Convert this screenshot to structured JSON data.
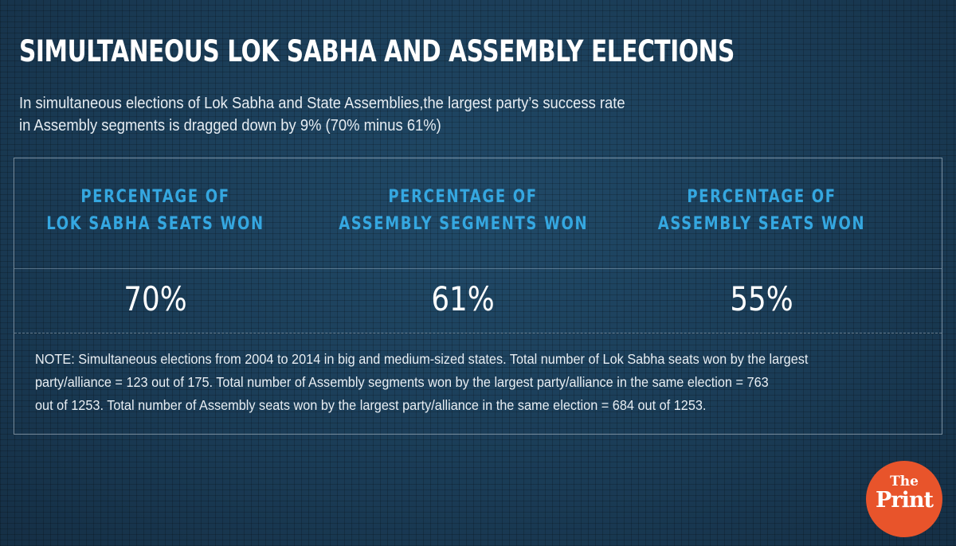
{
  "header": {
    "title": "SIMULTANEOUS LOK SABHA AND ASSEMBLY ELECTIONS",
    "subtitle_lines": [
      "In simultaneous elections of Lok Sabha and State Assemblies,the largest party’s success rate",
      "in Assembly segments is dragged down by 9% (70% minus 61%)"
    ]
  },
  "columns": [
    {
      "heading_lines": [
        "PERCENTAGE OF",
        "LOK SABHA SEATS WON"
      ],
      "value": "70%"
    },
    {
      "heading_lines": [
        "PERCENTAGE OF",
        "ASSEMBLY SEGMENTS WON"
      ],
      "value": "61%"
    },
    {
      "heading_lines": [
        "PERCENTAGE OF",
        "ASSEMBLY SEATS WON"
      ],
      "value": "55%"
    }
  ],
  "note_lines": [
    "NOTE: Simultaneous elections from 2004 to 2014 in big and medium-sized states. Total number of Lok Sabha seats won by the largest",
    "party/alliance = 123 out of 175. Total number of Assembly segments won by the largest party/alliance in the same election = 763",
    "out of 1253. Total number of Assembly seats won by the largest party/alliance in the same election = 684 out of 1253."
  ],
  "logo": {
    "top": "The",
    "bottom": "Print"
  },
  "colors": {
    "background": "#1b3e58",
    "heading_accent": "#35a7e0",
    "logo_circle": "#e8542b"
  }
}
